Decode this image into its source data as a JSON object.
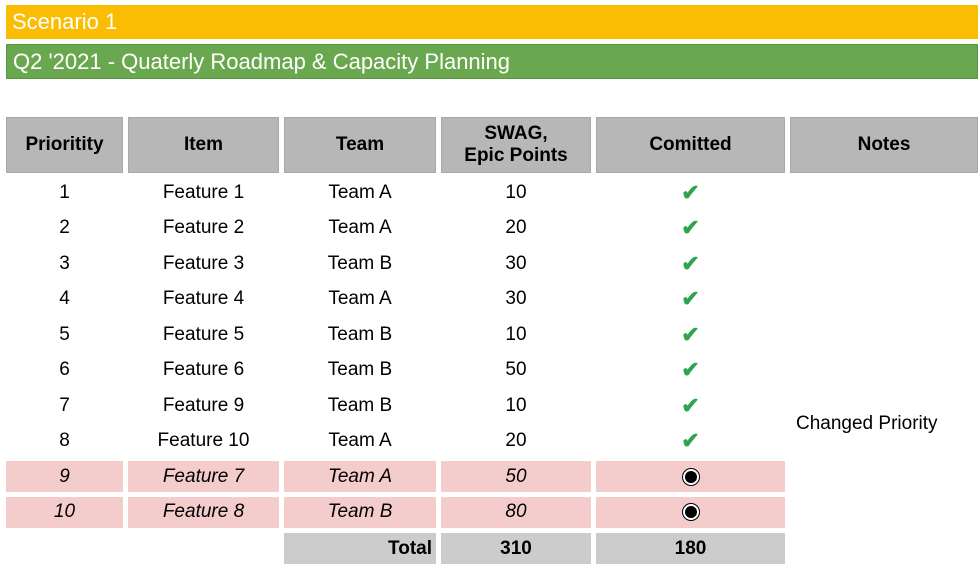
{
  "scenario": "Scenario 1",
  "title": "Q2 '2021 - Quaterly Roadmap & Capacity Planning",
  "colors": {
    "scenario_bg": "#fbbc04",
    "title_bg": "#6aa84f",
    "header_bg": "#b7b7b7",
    "deprioritized_bg": "#f4cccc",
    "total_bg": "#cccccc",
    "check": "#2ea44f"
  },
  "table": {
    "headers": [
      "Prioritity",
      "Item",
      "Team",
      "SWAG,\nEpic Points",
      "Comitted",
      "Notes"
    ],
    "header_swag_line1": "SWAG,",
    "header_swag_line2": "Epic Points",
    "rows": [
      {
        "priority": "1",
        "item": "Feature 1",
        "team": "Team A",
        "points": "10",
        "committed": "check"
      },
      {
        "priority": "2",
        "item": "Feature 2",
        "team": "Team A",
        "points": "20",
        "committed": "check"
      },
      {
        "priority": "3",
        "item": "Feature 3",
        "team": "Team B",
        "points": "30",
        "committed": "check"
      },
      {
        "priority": "4",
        "item": "Feature 4",
        "team": "Team A",
        "points": "30",
        "committed": "check"
      },
      {
        "priority": "5",
        "item": "Feature 5",
        "team": "Team B",
        "points": "10",
        "committed": "check"
      },
      {
        "priority": "6",
        "item": "Feature 6",
        "team": "Team B",
        "points": "50",
        "committed": "check"
      },
      {
        "priority": "7",
        "item": "Feature 9",
        "team": "Team B",
        "points": "10",
        "committed": "check"
      },
      {
        "priority": "8",
        "item": "Feature 10",
        "team": "Team A",
        "points": "20",
        "committed": "check"
      },
      {
        "priority": "9",
        "item": "Feature 7",
        "team": "Team A",
        "points": "50",
        "committed": "radio"
      },
      {
        "priority": "10",
        "item": "Feature 8",
        "team": "Team B",
        "points": "80",
        "committed": "radio"
      }
    ],
    "notes": "Changed Priority",
    "total": {
      "label": "Total",
      "points": "310",
      "committed": "180"
    },
    "check_glyph": "✔"
  }
}
